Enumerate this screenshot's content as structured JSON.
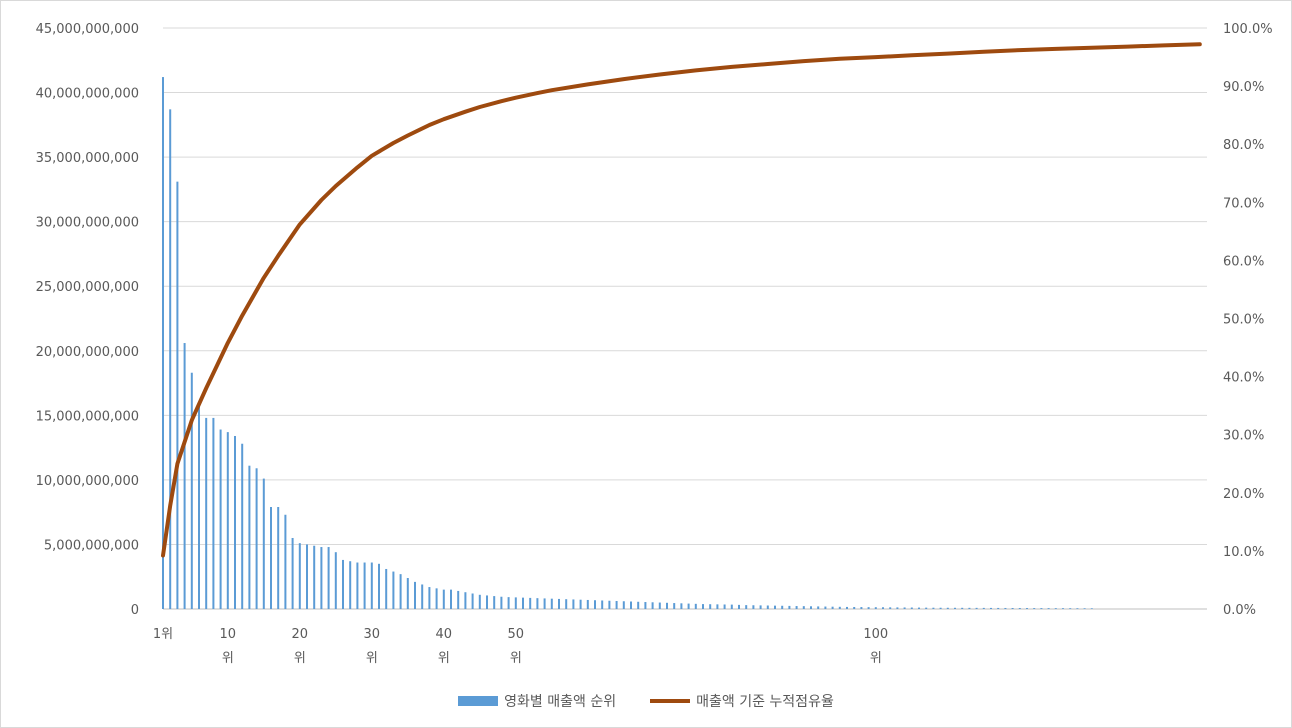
{
  "chart_data": {
    "type": "bar",
    "series": [
      {
        "name": "영화별 매출액 순위",
        "kind": "bar",
        "axis": "left",
        "color": "#5b9bd5",
        "x": [
          1,
          2,
          3,
          4,
          5,
          6,
          7,
          8,
          9,
          10,
          11,
          12,
          13,
          14,
          15,
          16,
          17,
          18,
          19,
          20,
          21,
          22,
          23,
          24,
          25,
          26,
          27,
          28,
          29,
          30,
          31,
          32,
          33,
          34,
          35,
          36,
          37,
          38,
          39,
          40,
          41,
          42,
          43,
          44,
          45,
          46,
          47,
          48,
          49,
          50,
          51,
          52,
          53,
          54,
          55,
          56,
          57,
          58,
          59,
          60,
          61,
          62,
          63,
          64,
          65,
          66,
          67,
          68,
          69,
          70,
          71,
          72,
          73,
          74,
          75,
          76,
          77,
          78,
          79,
          80,
          81,
          82,
          83,
          84,
          85,
          86,
          87,
          88,
          89,
          90,
          91,
          92,
          93,
          94,
          95,
          96,
          97,
          98,
          99,
          100,
          101,
          102,
          103,
          104,
          105,
          106,
          107,
          108,
          109,
          110,
          111,
          112,
          113,
          114,
          115,
          116,
          117,
          118,
          119,
          120,
          121,
          122,
          123,
          124,
          125,
          126,
          127,
          128,
          129,
          130
        ],
        "values": [
          41200000000,
          38700000000,
          33100000000,
          20600000000,
          18300000000,
          15900000000,
          14800000000,
          14800000000,
          13900000000,
          13700000000,
          13400000000,
          12800000000,
          11100000000,
          10900000000,
          10100000000,
          7900000000,
          7900000000,
          7300000000,
          5500000000,
          5100000000,
          5000000000,
          4900000000,
          4800000000,
          4800000000,
          4400000000,
          3800000000,
          3700000000,
          3600000000,
          3600000000,
          3600000000,
          3500000000,
          3100000000,
          2900000000,
          2700000000,
          2400000000,
          2100000000,
          1900000000,
          1700000000,
          1600000000,
          1500000000,
          1500000000,
          1400000000,
          1300000000,
          1200000000,
          1100000000,
          1050000000,
          1000000000,
          950000000,
          920000000,
          900000000,
          880000000,
          860000000,
          840000000,
          820000000,
          800000000,
          780000000,
          760000000,
          740000000,
          720000000,
          700000000,
          680000000,
          660000000,
          640000000,
          620000000,
          600000000,
          580000000,
          560000000,
          540000000,
          520000000,
          500000000,
          480000000,
          460000000,
          440000000,
          420000000,
          400000000,
          380000000,
          370000000,
          360000000,
          350000000,
          340000000,
          320000000,
          300000000,
          290000000,
          280000000,
          270000000,
          260000000,
          250000000,
          240000000,
          230000000,
          220000000,
          210000000,
          200000000,
          190000000,
          180000000,
          170000000,
          160000000,
          155000000,
          150000000,
          145000000,
          140000000,
          135000000,
          130000000,
          125000000,
          120000000,
          115000000,
          110000000,
          105000000,
          100000000,
          98000000,
          96000000,
          94000000,
          92000000,
          90000000,
          88000000,
          86000000,
          84000000,
          82000000,
          80000000,
          78000000,
          76000000,
          74000000,
          72000000,
          70000000,
          68000000,
          66000000,
          64000000,
          62000000,
          60000000,
          58000000,
          56000000
        ]
      },
      {
        "name": "매출액 기준 누적점유율",
        "kind": "line",
        "axis": "right",
        "color": "#9e4a0f",
        "x": [
          1,
          2,
          3,
          5,
          7,
          10,
          12,
          15,
          17,
          20,
          23,
          25,
          28,
          30,
          33,
          35,
          38,
          40,
          43,
          45,
          48,
          50,
          53,
          55,
          60,
          65,
          70,
          75,
          80,
          85,
          90,
          95,
          100,
          105,
          110,
          115,
          120,
          125,
          130,
          135,
          140,
          145
        ],
        "values": [
          9.2,
          17.8,
          25.0,
          32.5,
          38.0,
          45.8,
          50.5,
          57.0,
          60.8,
          66.2,
          70.4,
          72.8,
          76.0,
          78.0,
          80.2,
          81.5,
          83.3,
          84.3,
          85.6,
          86.4,
          87.4,
          88.0,
          88.8,
          89.3,
          90.3,
          91.2,
          92.0,
          92.7,
          93.3,
          93.8,
          94.3,
          94.7,
          95.0,
          95.3,
          95.6,
          95.9,
          96.2,
          96.4,
          96.6,
          96.8,
          97.0,
          97.2
        ]
      }
    ],
    "y_left": {
      "min": 0,
      "max": 45000000000,
      "ticks": [
        "0",
        "5,000,000,000",
        "10,000,000,000",
        "15,000,000,000",
        "20,000,000,000",
        "25,000,000,000",
        "30,000,000,000",
        "35,000,000,000",
        "40,000,000,000",
        "45,000,000,000"
      ]
    },
    "y_right": {
      "min": 0,
      "max": 100,
      "ticks": [
        "0.0%",
        "10.0%",
        "20.0%",
        "30.0%",
        "40.0%",
        "50.0%",
        "60.0%",
        "70.0%",
        "80.0%",
        "90.0%",
        "100.0%"
      ]
    },
    "x_axis": {
      "min": 1,
      "max": 146,
      "ticks": [
        {
          "x": 1,
          "label": "1위"
        },
        {
          "x": 10,
          "label": "10 위"
        },
        {
          "x": 20,
          "label": "20 위"
        },
        {
          "x": 30,
          "label": "30 위"
        },
        {
          "x": 40,
          "label": "40 위"
        },
        {
          "x": 50,
          "label": "50 위"
        },
        {
          "x": 100,
          "label": "100 위"
        }
      ]
    },
    "grid": true,
    "legend_position": "bottom"
  }
}
